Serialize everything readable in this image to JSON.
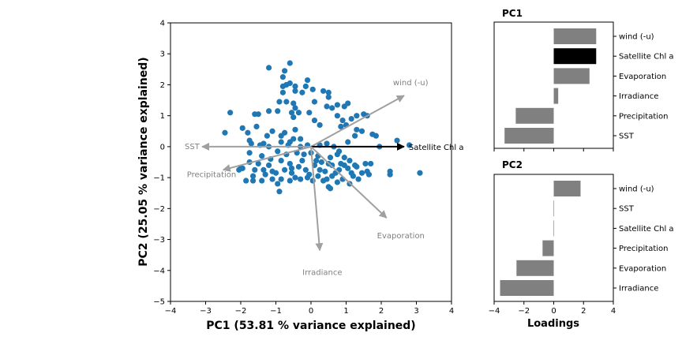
{
  "colors": {
    "points": "#1f77b4",
    "arrow_grey": "#a0a0a0",
    "arrow_black": "#000000",
    "bar_grey": "#808080",
    "bar_black": "#000000",
    "label_grey": "#808080"
  },
  "chart_data": [
    {
      "type": "scatter",
      "title": "",
      "xlabel": "PC1 (53.81 % variance explained)",
      "ylabel": "PC2 (25.05 % variance explained)",
      "xlim": [
        -4,
        4
      ],
      "ylim": [
        -5,
        4
      ],
      "xticks": [
        "−4",
        "−3",
        "−2",
        "−1",
        "0",
        "1",
        "2",
        "3",
        "4"
      ],
      "yticks": [
        "−5",
        "−4",
        "−3",
        "−2",
        "−1",
        "0",
        "1",
        "2",
        "3",
        "4"
      ],
      "grid": false,
      "points": [
        [
          -1.2,
          2.55
        ],
        [
          -0.6,
          2.7
        ],
        [
          -0.75,
          2.45
        ],
        [
          -0.8,
          2.25
        ],
        [
          -0.8,
          1.95
        ],
        [
          -0.7,
          2.0
        ],
        [
          -0.6,
          2.05
        ],
        [
          -0.45,
          1.95
        ],
        [
          -0.45,
          1.8
        ],
        [
          -0.8,
          1.75
        ],
        [
          -0.15,
          1.95
        ],
        [
          -0.1,
          2.15
        ],
        [
          0.05,
          1.85
        ],
        [
          0.35,
          1.8
        ],
        [
          0.5,
          1.75
        ],
        [
          0.5,
          1.6
        ],
        [
          -0.25,
          1.75
        ],
        [
          -0.9,
          1.45
        ],
        [
          -0.7,
          1.45
        ],
        [
          -0.5,
          1.4
        ],
        [
          -0.45,
          1.25
        ],
        [
          -0.35,
          1.1
        ],
        [
          -0.55,
          1.1
        ],
        [
          -0.95,
          1.15
        ],
        [
          -1.2,
          1.15
        ],
        [
          -1.5,
          1.05
        ],
        [
          -1.6,
          1.05
        ],
        [
          -2.3,
          1.1
        ],
        [
          -0.05,
          1.1
        ],
        [
          0.1,
          1.45
        ],
        [
          0.45,
          1.3
        ],
        [
          0.6,
          1.25
        ],
        [
          0.75,
          1.35
        ],
        [
          0.95,
          1.3
        ],
        [
          1.05,
          1.4
        ],
        [
          1.3,
          1.0
        ],
        [
          1.5,
          1.05
        ],
        [
          1.6,
          1.0
        ],
        [
          0.75,
          1.0
        ],
        [
          0.9,
          0.85
        ],
        [
          1.15,
          0.9
        ],
        [
          0.85,
          0.65
        ],
        [
          1.0,
          0.7
        ],
        [
          1.3,
          0.55
        ],
        [
          1.45,
          0.5
        ],
        [
          1.75,
          0.4
        ],
        [
          1.25,
          0.35
        ],
        [
          0.1,
          0.85
        ],
        [
          0.25,
          0.7
        ],
        [
          -0.5,
          0.95
        ],
        [
          -0.45,
          0.55
        ],
        [
          -1.1,
          0.5
        ],
        [
          -0.75,
          0.45
        ],
        [
          -1.55,
          0.65
        ],
        [
          -1.95,
          0.6
        ],
        [
          -2.45,
          0.45
        ],
        [
          -1.8,
          0.45
        ],
        [
          -1.25,
          0.35
        ],
        [
          -0.85,
          0.35
        ],
        [
          -0.5,
          0.25
        ],
        [
          -0.6,
          0.15
        ],
        [
          -1.35,
          0.1
        ],
        [
          -1.75,
          0.2
        ],
        [
          -1.7,
          0.1
        ],
        [
          -1.2,
          0.0
        ],
        [
          -0.85,
          0.15
        ],
        [
          -0.65,
          0.05
        ],
        [
          -0.3,
          0.25
        ],
        [
          -0.1,
          0.05
        ],
        [
          -0.95,
          -0.15
        ],
        [
          -0.7,
          -0.25
        ],
        [
          -0.4,
          -0.2
        ],
        [
          -0.2,
          -0.25
        ],
        [
          -1.4,
          -0.3
        ],
        [
          -1.5,
          -0.55
        ],
        [
          -1.75,
          -0.5
        ],
        [
          -1.15,
          -0.4
        ],
        [
          -0.85,
          -0.45
        ],
        [
          -0.6,
          -0.55
        ],
        [
          -0.35,
          -0.65
        ],
        [
          -0.15,
          -0.75
        ],
        [
          -0.05,
          -0.9
        ],
        [
          -0.55,
          -0.85
        ],
        [
          -0.75,
          -0.75
        ],
        [
          -1.0,
          -0.85
        ],
        [
          -1.2,
          -0.6
        ],
        [
          -1.35,
          -0.75
        ],
        [
          -1.6,
          -0.75
        ],
        [
          -1.65,
          -0.95
        ],
        [
          -1.95,
          -0.7
        ],
        [
          -2.05,
          -0.75
        ],
        [
          -1.85,
          -1.1
        ],
        [
          -1.65,
          -1.1
        ],
        [
          -1.4,
          -1.1
        ],
        [
          -1.1,
          -1.05
        ],
        [
          -0.95,
          -1.2
        ],
        [
          -0.85,
          -1.05
        ],
        [
          -0.6,
          -1.1
        ],
        [
          -0.45,
          -1.0
        ],
        [
          -0.3,
          -1.05
        ],
        [
          -0.1,
          -1.0
        ],
        [
          0.05,
          -1.1
        ],
        [
          0.2,
          -0.95
        ],
        [
          0.45,
          -1.05
        ],
        [
          0.6,
          -0.95
        ],
        [
          0.5,
          -1.3
        ],
        [
          0.55,
          -1.35
        ],
        [
          0.75,
          -1.15
        ],
        [
          0.9,
          -1.05
        ],
        [
          1.1,
          -1.2
        ],
        [
          1.35,
          -1.05
        ],
        [
          1.45,
          -0.85
        ],
        [
          1.6,
          -0.8
        ],
        [
          1.7,
          -0.55
        ],
        [
          1.55,
          -0.55
        ],
        [
          1.3,
          -0.65
        ],
        [
          1.15,
          -0.85
        ],
        [
          1.05,
          -0.7
        ],
        [
          0.85,
          -0.55
        ],
        [
          0.6,
          -0.6
        ],
        [
          0.4,
          -0.8
        ],
        [
          0.25,
          -0.75
        ],
        [
          0.1,
          -0.6
        ],
        [
          0.3,
          -0.5
        ],
        [
          0.55,
          -0.35
        ],
        [
          0.75,
          -0.25
        ],
        [
          0.95,
          -0.35
        ],
        [
          1.1,
          -0.45
        ],
        [
          0.8,
          -0.75
        ],
        [
          0.5,
          -0.55
        ],
        [
          0.2,
          -0.3
        ],
        [
          0.0,
          -0.2
        ],
        [
          0.65,
          0.0
        ],
        [
          0.8,
          -0.15
        ],
        [
          1.05,
          0.15
        ],
        [
          0.45,
          0.1
        ],
        [
          1.25,
          -0.6
        ],
        [
          1.95,
          0.0
        ],
        [
          2.45,
          0.2
        ],
        [
          2.8,
          0.05
        ],
        [
          2.25,
          -0.8
        ],
        [
          2.25,
          -0.9
        ],
        [
          3.1,
          -0.85
        ],
        [
          -0.9,
          -1.45
        ],
        [
          -1.75,
          -0.2
        ],
        [
          -1.1,
          -0.8
        ],
        [
          -1.3,
          -0.9
        ],
        [
          -0.55,
          -0.7
        ],
        [
          -0.25,
          -0.45
        ],
        [
          0.15,
          -0.45
        ],
        [
          0.35,
          -1.1
        ],
        [
          0.7,
          -0.85
        ],
        [
          0.95,
          -0.6
        ],
        [
          1.2,
          -0.95
        ],
        [
          1.65,
          -0.9
        ],
        [
          1.85,
          0.35
        ],
        [
          0.25,
          0.05
        ],
        [
          -0.3,
          0.0
        ],
        [
          -1.45,
          0.05
        ],
        [
          -2.0,
          -0.7
        ]
      ],
      "loading_arrows": [
        {
          "label": "wind (-u)",
          "x": 2.65,
          "y": 1.65,
          "color": "grey"
        },
        {
          "label": "Satellite Chl a",
          "x": 2.65,
          "y": 0.0,
          "color": "black"
        },
        {
          "label": "SST",
          "x": -3.1,
          "y": 0.0,
          "color": "grey"
        },
        {
          "label": "Precipitation",
          "x": -2.5,
          "y": -0.75,
          "color": "grey"
        },
        {
          "label": "Evaporation",
          "x": 2.15,
          "y": -2.3,
          "color": "grey"
        },
        {
          "label": "Irradiance",
          "x": 0.25,
          "y": -3.35,
          "color": "grey"
        }
      ]
    },
    {
      "type": "bar",
      "orientation": "horizontal",
      "title": "PC1",
      "categories": [
        "wind (-u)",
        "Satellite Chl a",
        "Evaporation",
        "Irradiance",
        "Precipitation",
        "SST"
      ],
      "values": [
        2.85,
        2.85,
        2.4,
        0.3,
        -2.55,
        -3.3
      ],
      "highlight": "Satellite Chl a",
      "xlim": [
        -4,
        4
      ],
      "xticks_shown": false
    },
    {
      "type": "bar",
      "orientation": "horizontal",
      "title": "PC2",
      "categories": [
        "wind (-u)",
        "SST",
        "Satellite Chl a",
        "Precipitation",
        "Evaporation",
        "Irradiance"
      ],
      "values": [
        1.8,
        0.0,
        0.0,
        -0.75,
        -2.5,
        -3.6
      ],
      "xlim": [
        -4,
        4
      ],
      "xticks": [
        "−4",
        "−2",
        "0",
        "2",
        "4"
      ],
      "xlabel": "Loadings"
    }
  ]
}
